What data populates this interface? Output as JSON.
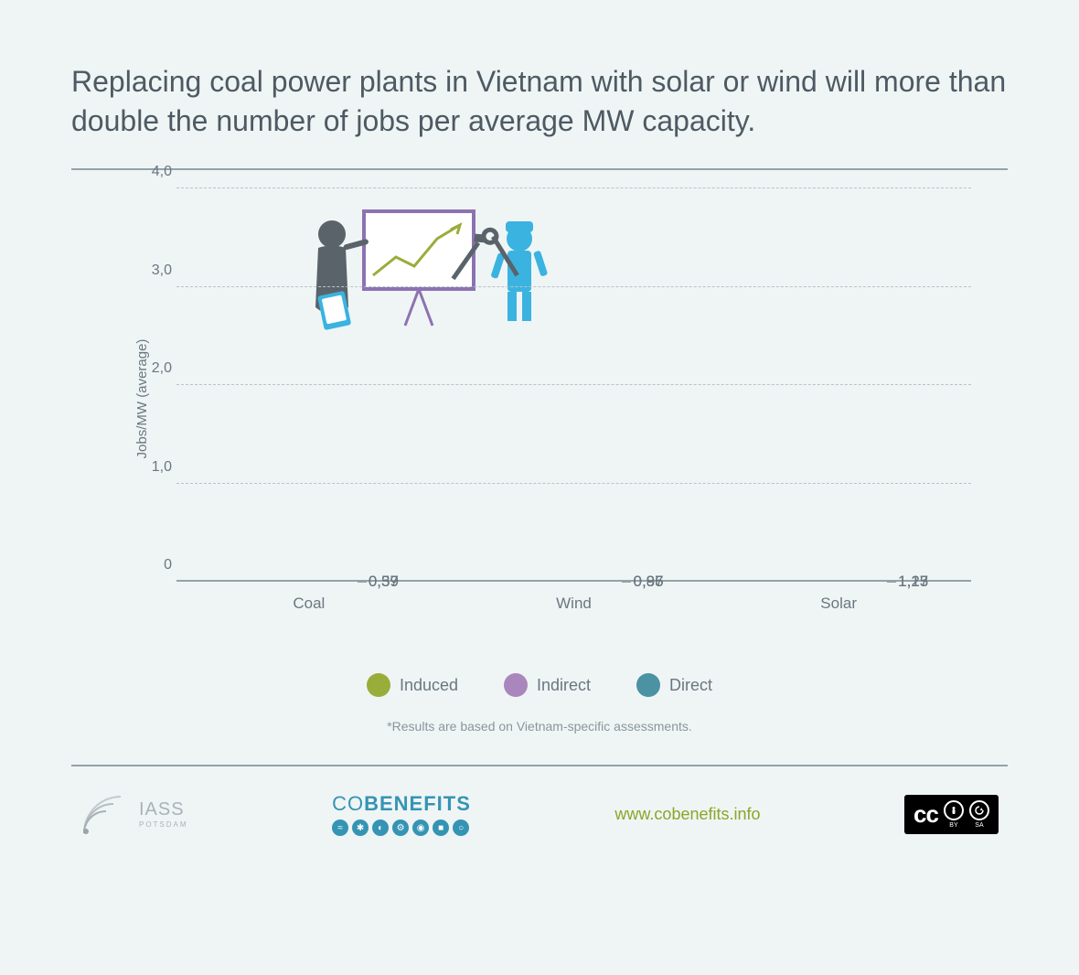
{
  "title": "Replacing coal power plants in Vietnam with solar or wind will more than double the number of jobs per average MW capacity.",
  "chart": {
    "type": "stacked-bar",
    "ylabel": "Jobs/MW (average)",
    "ymax": 4.0,
    "yticks": [
      {
        "v": 0,
        "label": "0"
      },
      {
        "v": 1.0,
        "label": "1,0"
      },
      {
        "v": 2.0,
        "label": "2,0"
      },
      {
        "v": 3.0,
        "label": "3,0"
      },
      {
        "v": 4.0,
        "label": "4,0"
      }
    ],
    "categories": [
      "Coal",
      "Wind",
      "Solar"
    ],
    "series": [
      {
        "key": "direct",
        "label": "Direct",
        "color": "#4b92a3"
      },
      {
        "key": "indirect",
        "label": "Indirect",
        "color": "#a987bd"
      },
      {
        "key": "induced",
        "label": "Induced",
        "color": "#99ad3a"
      }
    ],
    "data": [
      {
        "direct": "0,57",
        "indirect": "0,39",
        "induced": "0,39",
        "nums": [
          0.57,
          0.39,
          0.39
        ]
      },
      {
        "direct": "0,95",
        "indirect": "0,96",
        "induced": "0,87",
        "nums": [
          0.95,
          0.96,
          0.87
        ]
      },
      {
        "direct": "1,15",
        "indirect": "1,27",
        "induced": "1,13",
        "nums": [
          1.15,
          1.27,
          1.13
        ]
      }
    ],
    "grid_color": "#b9c3c8",
    "axis_color": "#94a2a8",
    "label_color": "#6a7780",
    "background": "#eff5f5",
    "title_fontsize": 32,
    "axis_fontsize": 16
  },
  "legend": {
    "induced": "Induced",
    "indirect": "Indirect",
    "direct": "Direct"
  },
  "footnote": "*Results are based on Vietnam-specific assessments.",
  "footer": {
    "iass_top": "IASS",
    "iass_sub": "POTSDAM",
    "cobenefits_co": "CO",
    "cobenefits_rest": "BENEFITS",
    "url": "www.cobenefits.info",
    "cc_main": "cc",
    "cc_by": "BY",
    "cc_sa": "SA"
  },
  "illustration": {
    "person_color": "#5a636a",
    "worker_color": "#3bb3e0",
    "board_frame": "#8d72b2",
    "chart_line": "#99ad3a",
    "tool_color": "#5a636a"
  }
}
